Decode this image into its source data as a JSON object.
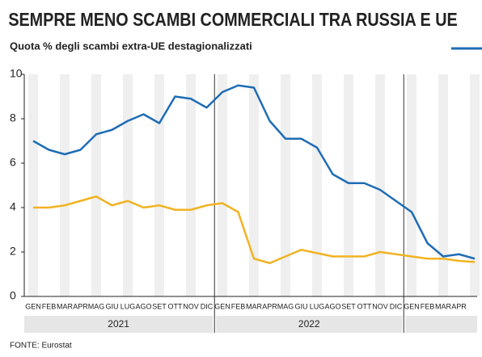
{
  "chart_data": {
    "type": "line",
    "title": "SEMPRE MENO SCAMBI COMMERCIALI TRA RUSSIA E UE",
    "subtitle": "Quota % degli scambi extra-UE destagionalizzati",
    "source": "FONTE: Eurostat",
    "categories": [
      "GEN",
      "FEB",
      "MAR",
      "APR",
      "MAG",
      "GIU",
      "LUG",
      "AGO",
      "SET",
      "OTT",
      "NOV",
      "DIC",
      "GEN",
      "FEB",
      "MAR",
      "APR",
      "MAG",
      "GIU",
      "LUG",
      "AGO",
      "SET",
      "OTT",
      "NOV",
      "DIC",
      "GEN",
      "FEB",
      "MAR",
      "APR",
      null
    ],
    "years": [
      "2021",
      "2022"
    ],
    "series": [
      {
        "color": "#1f6db5",
        "values": [
          7.0,
          6.6,
          6.4,
          6.6,
          7.3,
          7.5,
          7.9,
          8.2,
          7.8,
          9.0,
          8.9,
          8.5,
          9.2,
          9.5,
          9.4,
          7.9,
          7.1,
          7.1,
          6.7,
          5.5,
          5.1,
          5.1,
          4.8,
          4.3,
          3.8,
          2.4,
          1.8,
          1.9,
          1.7
        ]
      },
      {
        "color": "#f0b323",
        "values": [
          4.0,
          4.0,
          4.1,
          4.3,
          4.5,
          4.1,
          4.3,
          4.0,
          4.1,
          3.9,
          3.9,
          4.1,
          4.2,
          3.8,
          1.7,
          1.5,
          1.8,
          2.1,
          1.95,
          1.8,
          1.8,
          1.8,
          2.0,
          1.9,
          1.8,
          1.7,
          1.7,
          1.6,
          1.55
        ]
      }
    ],
    "ylim": [
      0,
      10
    ],
    "yticks": [
      0,
      2,
      4,
      6,
      8,
      10
    ],
    "grid": false
  }
}
